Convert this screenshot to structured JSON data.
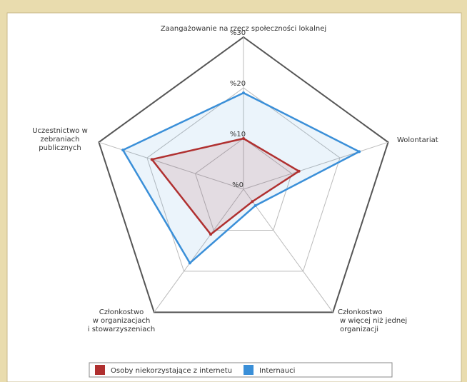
{
  "chart_data": {
    "type": "radar",
    "categories": [
      [
        "Zaangażowanie na rzecz społeczności lokalnej"
      ],
      [
        "Wolontariat"
      ],
      [
        "Członkostwo",
        "w więcej niż jednej",
        "organizacji"
      ],
      [
        "Członkostwo",
        "w organizacjach",
        "i stowarzyszeniach"
      ],
      [
        "Uczestnictwo w",
        "zebraniach",
        "publicznych"
      ]
    ],
    "series": [
      {
        "name": "Osoby niekorzystające z internetu",
        "color": "#b03030",
        "values": [
          10,
          11.5,
          3,
          11,
          19
        ]
      },
      {
        "name": "Internauci",
        "color": "#3a8fd8",
        "values": [
          19,
          24,
          4,
          18,
          25
        ]
      }
    ],
    "ylim": [
      0,
      30
    ],
    "yticks": [
      {
        "value": 0,
        "label": "%0"
      },
      {
        "value": 10,
        "label": "%10"
      },
      {
        "value": 20,
        "label": "%20"
      },
      {
        "value": 30,
        "label": "%30"
      }
    ],
    "grid": true,
    "legend": "bottom"
  }
}
